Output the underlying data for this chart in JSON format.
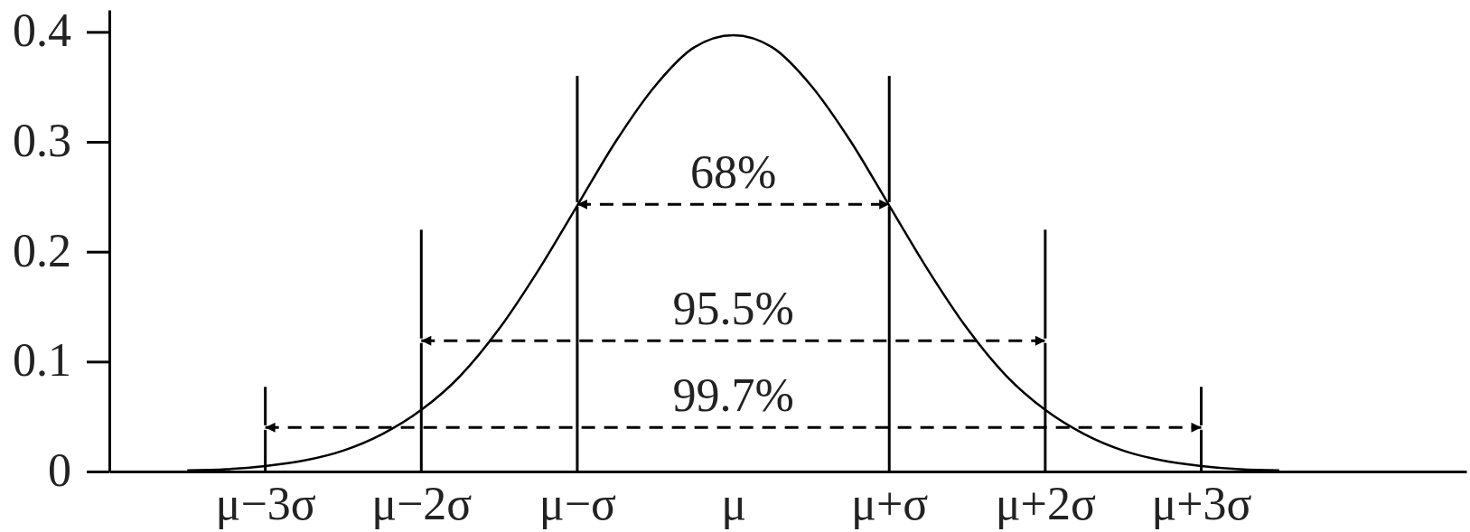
{
  "chart_data": {
    "type": "line",
    "ylim": [
      0,
      0.42
    ],
    "yticks": [
      0,
      0.1,
      0.2,
      0.3,
      0.4
    ],
    "categories": [
      null,
      null,
      null,
      null,
      "μ−3σ",
      null,
      null,
      null,
      "μ−2σ",
      null,
      null,
      null,
      "μ−σ",
      null,
      null,
      null,
      "μ",
      null,
      null,
      null,
      "μ+σ",
      null,
      null,
      null,
      "μ+2σ",
      null,
      null,
      null,
      "μ+3σ",
      null,
      null,
      null,
      null,
      null,
      null
    ],
    "series": [
      {
        "color": "#000000",
        "values": [
          null,
          null,
          0.001,
          0.002,
          0.005,
          0.01,
          0.019,
          0.034,
          0.056,
          0.087,
          0.13,
          0.183,
          0.242,
          0.301,
          0.351,
          0.386,
          0.397,
          0.386,
          0.351,
          0.301,
          0.242,
          0.183,
          0.13,
          0.087,
          0.056,
          0.034,
          0.019,
          0.01,
          0.005,
          0.002,
          0.001,
          null,
          null,
          null,
          null
        ]
      },
      {
        "type": "bar",
        "color": "#000000",
        "values": [
          null,
          null,
          null,
          null,
          0.077,
          null,
          null,
          null,
          0.22,
          null,
          null,
          null,
          0.36,
          null,
          null,
          null,
          null,
          null,
          null,
          null,
          0.36,
          null,
          null,
          null,
          0.22,
          null,
          null,
          null,
          0.077,
          null,
          null,
          null,
          null,
          null,
          null
        ]
      },
      {
        "color": "#000000",
        "x": [
          "μ−σ",
          "μ",
          "μ+σ"
        ],
        "values": [
          0.243,
          0.243,
          0.243
        ],
        "line_style": "dashed"
      },
      {
        "color": "#000000",
        "x": [
          "μ−2σ",
          "μ",
          "μ+2σ"
        ],
        "values": [
          0.119,
          0.119,
          0.119
        ],
        "line_style": "dashed"
      },
      {
        "color": "#000000",
        "x": [
          "μ−3σ",
          "μ",
          "μ+3σ"
        ],
        "values": [
          0.04,
          0.04,
          0.04
        ],
        "line_style": "dashed"
      }
    ],
    "annotations": [
      {
        "text": "68%",
        "x": "μ",
        "y": 0.243
      },
      {
        "text": "95.5%",
        "x": "μ",
        "y": 0.119
      },
      {
        "text": "99.7%",
        "x": "μ",
        "y": 0.04
      }
    ]
  }
}
